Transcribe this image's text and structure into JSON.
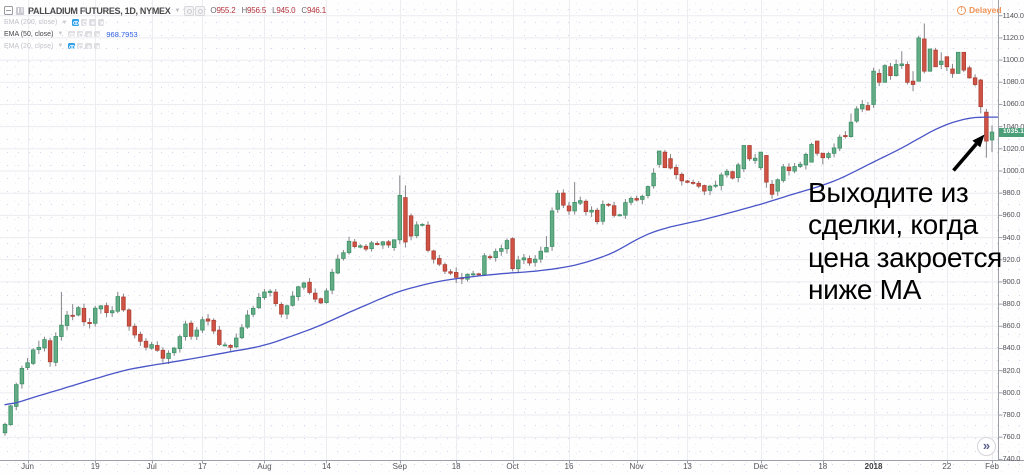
{
  "header": {
    "symbol_title": "PALLADIUM FUTURES, 1D, NYMEX",
    "ohlc": [
      {
        "k": "O",
        "v": "955.2"
      },
      {
        "k": "H",
        "v": "956.5"
      },
      {
        "k": "L",
        "v": "945.0"
      },
      {
        "k": "C",
        "v": "946.1"
      }
    ],
    "delayed_label": "Delayed"
  },
  "legend": {
    "rows": [
      {
        "label": "EMA (200, close)",
        "value": "",
        "hidden": true
      },
      {
        "label": "EMA (50, close)",
        "value": "968.7953",
        "hidden": false
      },
      {
        "label": "EMA (20, close)",
        "value": "",
        "hidden": true
      }
    ]
  },
  "annotation": {
    "lines": [
      "Выходите из",
      "сделки, когда",
      "цена закроется",
      "ниже МА"
    ]
  },
  "scroll_to_end_glyph": "»",
  "icons": {
    "caret_down": "▼",
    "delayed_exclamation": "!"
  },
  "chart_data": {
    "type": "candlestick",
    "title": "PALLADIUM FUTURES, 1D, NYMEX",
    "symbol": "PALLADIUM FUTURES",
    "interval": "1D",
    "exchange": "NYMEX",
    "last_price_label": "1035.1",
    "last_price": 1035.1,
    "price_axis": {
      "min": 740,
      "max": 1140,
      "step": 20,
      "decimals": 1
    },
    "time_axis": {
      "ticks": [
        {
          "label": "Jun",
          "index": 4,
          "bold": false
        },
        {
          "label": "19",
          "index": 16,
          "bold": false
        },
        {
          "label": "Jul",
          "index": 26,
          "bold": false
        },
        {
          "label": "17",
          "index": 35,
          "bold": false
        },
        {
          "label": "Aug",
          "index": 46,
          "bold": false
        },
        {
          "label": "14",
          "index": 57,
          "bold": false
        },
        {
          "label": "Sep",
          "index": 70,
          "bold": false
        },
        {
          "label": "18",
          "index": 80,
          "bold": false
        },
        {
          "label": "Oct",
          "index": 90,
          "bold": false
        },
        {
          "label": "16",
          "index": 100,
          "bold": false
        },
        {
          "label": "Nov",
          "index": 112,
          "bold": false
        },
        {
          "label": "13",
          "index": 121,
          "bold": false
        },
        {
          "label": "Dec",
          "index": 134,
          "bold": false
        },
        {
          "label": "18",
          "index": 145,
          "bold": false
        },
        {
          "label": "2018",
          "index": 154,
          "bold": true
        },
        {
          "label": "22",
          "index": 167,
          "bold": false
        },
        {
          "label": "Feb",
          "index": 175,
          "bold": false
        }
      ]
    },
    "candles_ohlc": [
      [
        764.0,
        773.2,
        761.3,
        771.6
      ],
      [
        771.3,
        789.1,
        770.4,
        788.2
      ],
      [
        787.8,
        809.1,
        784.4,
        807.4
      ],
      [
        808.1,
        824.4,
        803.8,
        822.0
      ],
      [
        822.8,
        831.4,
        820.6,
        827.1
      ],
      [
        826.6,
        840.3,
        825.1,
        838.7
      ],
      [
        839,
        847,
        835,
        841
      ],
      [
        840.5,
        850.6,
        837.3,
        848.0
      ],
      [
        847,
        849.6,
        823.6,
        828
      ],
      [
        827.5,
        854.5,
        824.0,
        850.8
      ],
      [
        850.8,
        891,
        847.1,
        861.0
      ],
      [
        860.7,
        873.8,
        856.3,
        870.0
      ],
      [
        869.9,
        880,
        865.5,
        869.8
      ],
      [
        870.2,
        878.2,
        868.9,
        876.8
      ],
      [
        876.2,
        880.4,
        860.3,
        864.1
      ],
      [
        863.5,
        867.4,
        858.0,
        862.4
      ],
      [
        862.7,
        878.4,
        859.8,
        876.3
      ],
      [
        875.7,
        879.2,
        871.3,
        878.4
      ],
      [
        878.6,
        881.4,
        868.1,
        872.3
      ],
      [
        872.2,
        878.1,
        868.4,
        874.1
      ],
      [
        873.6,
        891,
        871.7,
        886.8
      ],
      [
        886.4,
        889.4,
        873.1,
        874.8
      ],
      [
        874.7,
        876.0,
        856.0,
        860.2
      ],
      [
        860.0,
        862.5,
        849.2,
        852.2
      ],
      [
        852.8,
        855.2,
        842.3,
        846.5
      ],
      [
        846.5,
        849.3,
        838.3,
        841.1
      ],
      [
        840.3,
        846.0,
        838.8,
        843.5
      ],
      [
        842.7,
        846.5,
        837.0,
        838.4
      ],
      [
        838.4,
        841,
        827,
        831.2
      ],
      [
        831.0,
        838.4,
        826,
        835.7
      ],
      [
        836.2,
        841.5,
        833.3,
        840.3
      ],
      [
        839.9,
        852.5,
        836.3,
        850.7
      ],
      [
        850.7,
        865.0,
        847.1,
        862.1
      ],
      [
        862.8,
        865.2,
        847.9,
        851.0
      ],
      [
        851.0,
        859.3,
        847.6,
        856.6
      ],
      [
        856.6,
        868.7,
        854.0,
        865.9
      ],
      [
        866.6,
        871,
        860.7,
        864.7
      ],
      [
        865.4,
        867.2,
        853.0,
        855.8
      ],
      [
        856.5,
        860.4,
        842.2,
        843.6
      ],
      [
        842.9,
        845.6,
        841.9,
        843.2
      ],
      [
        842.8,
        843.9,
        837.8,
        841.0
      ],
      [
        841.5,
        853.5,
        840.1,
        849.4
      ],
      [
        849.7,
        861.9,
        848.4,
        858.7
      ],
      [
        859.3,
        874.5,
        857.7,
        870.1
      ],
      [
        870.8,
        878.4,
        868.2,
        876.2
      ],
      [
        876.9,
        889.9,
        875.5,
        886.0
      ],
      [
        885.9,
        893.6,
        883.8,
        890.9
      ],
      [
        890.4,
        893.5,
        886.9,
        891.6
      ],
      [
        890.8,
        893.6,
        878.0,
        880.5
      ],
      [
        879.7,
        881.7,
        867.8,
        871.0
      ],
      [
        871.0,
        879.5,
        866.5,
        878.5
      ],
      [
        878.9,
        891.6,
        877.7,
        887.2
      ],
      [
        886.8,
        896.6,
        883.1,
        895.6
      ],
      [
        895.2,
        900.3,
        892.9,
        899.0
      ],
      [
        899.7,
        903.5,
        888.7,
        890.5
      ],
      [
        889.9,
        894.1,
        881.6,
        884.5
      ],
      [
        884.8,
        885.9,
        880.1,
        881.1
      ],
      [
        881.4,
        894.3,
        880.4,
        891.9
      ],
      [
        892.6,
        911.9,
        888.9,
        908.7
      ],
      [
        908.1,
        924.6,
        907.0,
        920.6
      ],
      [
        921.2,
        928.8,
        919.2,
        926.3
      ],
      [
        926.4,
        940.8,
        924.6,
        936.6
      ],
      [
        936.0,
        938.7,
        930.2,
        931.9
      ],
      [
        931.3,
        934.0,
        930.3,
        932.6
      ],
      [
        932.1,
        934.1,
        927.7,
        929.6
      ],
      [
        930.0,
        937.0,
        927.4,
        935.2
      ],
      [
        934.7,
        936.7,
        932.9,
        933.7
      ],
      [
        933.3,
        937.0,
        929.8,
        936.1
      ],
      [
        936.2,
        937.7,
        930.7,
        933.3
      ],
      [
        931,
        938,
        928,
        938
      ],
      [
        938,
        996,
        934,
        978
      ],
      [
        976,
        987,
        931,
        936
      ],
      [
        959.6,
        961.7,
        937.5,
        941.4
      ],
      [
        941.7,
        954.6,
        939.4,
        951.4
      ],
      [
        951.2,
        952.9,
        949.9,
        951.9
      ],
      [
        951.2,
        954.7,
        926.7,
        928.5
      ],
      [
        927.9,
        929.1,
        916.6,
        920.5
      ],
      [
        921.1,
        924.3,
        914.2,
        916.0
      ],
      [
        915.6,
        917.5,
        907.2,
        909.7
      ],
      [
        909.2,
        911.6,
        906.1,
        907.9
      ],
      [
        908.6,
        913.0,
        899,
        904.2
      ],
      [
        903.8,
        908.2,
        898,
        902.8
      ],
      [
        902.5,
        907.7,
        900.3,
        906.9
      ],
      [
        906.8,
        910.0,
        905.3,
        907.3
      ],
      [
        907.3,
        908.2,
        905.3,
        907.1
      ],
      [
        906.5,
        925.9,
        905.5,
        923.6
      ],
      [
        922.8,
        924.7,
        920.1,
        921.8
      ],
      [
        921.9,
        930.1,
        918.3,
        927.4
      ],
      [
        927.6,
        933.6,
        923.6,
        930.1
      ],
      [
        929.9,
        939.3,
        925.5,
        937.3
      ],
      [
        939,
        940.3,
        909.5,
        912
      ],
      [
        911.9,
        923.6,
        907.8,
        919.7
      ],
      [
        919.9,
        925.2,
        916.1,
        921.7
      ],
      [
        921.1,
        923.8,
        914.5,
        917.1
      ],
      [
        917.7,
        924.2,
        913.8,
        920.5
      ],
      [
        920.6,
        931.8,
        917.3,
        927.7
      ],
      [
        927,
        941.3,
        927,
        931
      ],
      [
        932,
        967.1,
        928,
        964
      ],
      [
        965.5,
        982.8,
        962.3,
        979.9
      ],
      [
        980.1,
        983.4,
        966.6,
        969.2
      ],
      [
        968.5,
        972.2,
        960.5,
        964.0
      ],
      [
        964.0,
        990,
        960.8,
        971.7
      ],
      [
        971.0,
        976.9,
        969.3,
        973.3
      ],
      [
        972.7,
        974.4,
        959.9,
        963.4
      ],
      [
        963.0,
        968.2,
        958.6,
        964.6
      ],
      [
        964.6,
        966.8,
        951.9,
        954.4
      ],
      [
        954.7,
        973.4,
        951.6,
        969.8
      ],
      [
        970.0,
        971.1,
        967.8,
        969.1
      ],
      [
        968.7,
        972.3,
        958.1,
        960.0
      ],
      [
        960.1,
        961.4,
        959.1,
        960.5
      ],
      [
        960.2,
        974.8,
        956.8,
        971.5
      ],
      [
        971.8,
        977.1,
        969.1,
        975.3
      ],
      [
        975.2,
        977.7,
        972.6,
        973.8
      ],
      [
        974.4,
        978.7,
        970.0,
        977.2
      ],
      [
        977.9,
        986.9,
        975.4,
        986.0
      ],
      [
        986.6,
        1002.4,
        984.1,
        998.0
      ],
      [
        1006,
        1018,
        1003,
        1018
      ],
      [
        1017,
        1018.9,
        1003,
        1003
      ],
      [
        1011.1,
        1015.4,
        1001.4,
        1002.7
      ],
      [
        1003.2,
        1005.9,
        992.6,
        996.7
      ],
      [
        997.0,
        998.7,
        986.9,
        991.1
      ],
      [
        991.0,
        991.9,
        988.9,
        989.8
      ],
      [
        989.7,
        992.2,
        987.6,
        989.5
      ],
      [
        988.9,
        991.0,
        984.4,
        986.3
      ],
      [
        986.9,
        987.7,
        978.3,
        981.9
      ],
      [
        982.5,
        987.5,
        978.2,
        986.3
      ],
      [
        986.6,
        991.3,
        984.7,
        987.2
      ],
      [
        987.0,
        998.6,
        982.5,
        996.4
      ],
      [
        996.5,
        1001.9,
        994.1,
        999.8
      ],
      [
        999.4,
        1000.4,
        992.4,
        993.6
      ],
      [
        994.1,
        1007.4,
        989.9,
        1005.5
      ],
      [
        1002,
        1023,
        999,
        1023
      ],
      [
        1023,
        1023,
        1009,
        1011
      ],
      [
        1009.5,
        1015.3,
        1006.4,
        1011.5
      ],
      [
        1003,
        1017,
        1001,
        1017
      ],
      [
        1014,
        1014,
        984.9,
        990
      ],
      [
        988,
        991.9,
        975,
        979
      ],
      [
        981.9,
        993.1,
        977.6,
        992.1
      ],
      [
        991.5,
        1006.3,
        989.5,
        1003.8
      ],
      [
        1003.5,
        1007.0,
        995.9,
        1000.3
      ],
      [
        999.9,
        1007.3,
        998.0,
        1004.0
      ],
      [
        1004.1,
        1008.3,
        1002.7,
        1006.1
      ],
      [
        1005.5,
        1016.6,
        1001.4,
        1015.0
      ],
      [
        1008,
        1025.5,
        1008,
        1024
      ],
      [
        1027,
        1027.2,
        1013.8,
        1016
      ],
      [
        1016,
        1016,
        1006,
        1012
      ],
      [
        1012.2,
        1017.4,
        1010.4,
        1015.7
      ],
      [
        1015.9,
        1024.8,
        1012.3,
        1020.8
      ],
      [
        1020.6,
        1032.8,
        1017.9,
        1030.5
      ],
      [
        1032,
        1036,
        1029.3,
        1031
      ],
      [
        1031,
        1051.8,
        1030.1,
        1044
      ],
      [
        1045,
        1058.4,
        1043.4,
        1056
      ],
      [
        1056,
        1064,
        1053.1,
        1060
      ],
      [
        1059,
        1062.3,
        1054.4,
        1055
      ],
      [
        1060,
        1093.1,
        1057,
        1090
      ],
      [
        1088,
        1091.8,
        1076.5,
        1080
      ],
      [
        1080,
        1096.3,
        1079.7,
        1095
      ],
      [
        1094,
        1097.4,
        1082.3,
        1086
      ],
      [
        1086,
        1100.5,
        1085.1,
        1096
      ],
      [
        1095,
        1108,
        1092,
        1096.5
      ],
      [
        1096,
        1098.7,
        1078,
        1080
      ],
      [
        1081,
        1090.0,
        1072,
        1078
      ],
      [
        1081,
        1122,
        1081,
        1120
      ],
      [
        1119,
        1133,
        1088,
        1090
      ],
      [
        1090,
        1110,
        1089.5,
        1110
      ],
      [
        1109,
        1111.0,
        1094,
        1094
      ],
      [
        1096,
        1107,
        1091.8,
        1099
      ],
      [
        1103,
        1103,
        1090.2,
        1094
      ],
      [
        1092,
        1096.6,
        1084,
        1088
      ],
      [
        1088,
        1107,
        1088,
        1107
      ],
      [
        1107,
        1107,
        1089.1,
        1091
      ],
      [
        1093,
        1094.9,
        1083.2,
        1084
      ],
      [
        1084,
        1087.0,
        1076.3,
        1078
      ],
      [
        1082,
        1083,
        1052,
        1058
      ],
      [
        1053,
        1056,
        1012,
        1027
      ],
      [
        1028,
        1041,
        1017,
        1035.1
      ]
    ],
    "ema50": {
      "name": "EMA (50, close)",
      "values": [
        789.3,
        790.2,
        791.0,
        792.6,
        794.3,
        795.8,
        797.4,
        798.9,
        800.4,
        801.9,
        803.4,
        805.0,
        806.5,
        808.1,
        809.7,
        811.2,
        812.7,
        814.2,
        815.7,
        817.2,
        818.6,
        819.9,
        821.1,
        822.1,
        823.0,
        823.9,
        824.7,
        825.6,
        826.4,
        827.2,
        828.1,
        828.9,
        829.8,
        830.6,
        831.5,
        832.4,
        833.3,
        834.3,
        835.2,
        836.1,
        837.1,
        838.0,
        838.8,
        839.7,
        840.7,
        841.8,
        843.1,
        844.5,
        846.1,
        847.9,
        849.6,
        851.4,
        853.2,
        855.1,
        857.0,
        859.0,
        861.1,
        863.3,
        865.6,
        867.9,
        870.2,
        872.5,
        874.7,
        876.9,
        879.1,
        881.3,
        883.5,
        885.6,
        887.8,
        889.7,
        891.5,
        893.1,
        894.5,
        895.8,
        897.1,
        898.3,
        899.5,
        900.5,
        901.4,
        902.2,
        902.9,
        903.6,
        904.2,
        904.8,
        905.4,
        905.9,
        906.4,
        906.9,
        907.4,
        907.8,
        908.2,
        908.5,
        908.9,
        909.3,
        909.7,
        910.3,
        910.9,
        911.5,
        912.3,
        913.1,
        914.0,
        915.1,
        916.3,
        917.8,
        919.3,
        921.0,
        922.7,
        924.7,
        927.0,
        929.6,
        932.5,
        935.4,
        938.2,
        940.7,
        943.0,
        945.0,
        946.7,
        948.2,
        949.6,
        950.8,
        951.9,
        953.0,
        954.1,
        955.2,
        956.4,
        957.7,
        959.0,
        960.3,
        961.7,
        963.0,
        964.4,
        965.8,
        967.2,
        968.6,
        970.0,
        971.6,
        973.2,
        974.8,
        976.4,
        978.0,
        979.5,
        981.0,
        982.5,
        984.0,
        985.6,
        987.3,
        989.1,
        991.0,
        993.1,
        995.4,
        997.9,
        1000.4,
        1003.0,
        1005.6,
        1008.1,
        1010.6,
        1013.1,
        1015.6,
        1018.1,
        1020.8,
        1023.5,
        1026.4,
        1029.2,
        1032.1,
        1035.0,
        1037.5,
        1039.8,
        1041.9,
        1043.7,
        1045.2,
        1046.5,
        1047.5,
        1048.2,
        1048.4,
        1048.6,
        1048.6
      ]
    }
  },
  "colors": {
    "up_fill": "#63ac85",
    "up_border": "#3f9169",
    "down_fill": "#cf5244",
    "down_border": "#ad4135",
    "wick": "#85858a",
    "ema": "#4a55c7",
    "grid": "#ececf1",
    "axis_line": "#9da0a8",
    "axis_text": "#4e4e52",
    "last_price_bg": "#3fa876",
    "delayed": "#f09355",
    "ohlc_value": "#b3343c",
    "annotation_text": "#000000"
  }
}
